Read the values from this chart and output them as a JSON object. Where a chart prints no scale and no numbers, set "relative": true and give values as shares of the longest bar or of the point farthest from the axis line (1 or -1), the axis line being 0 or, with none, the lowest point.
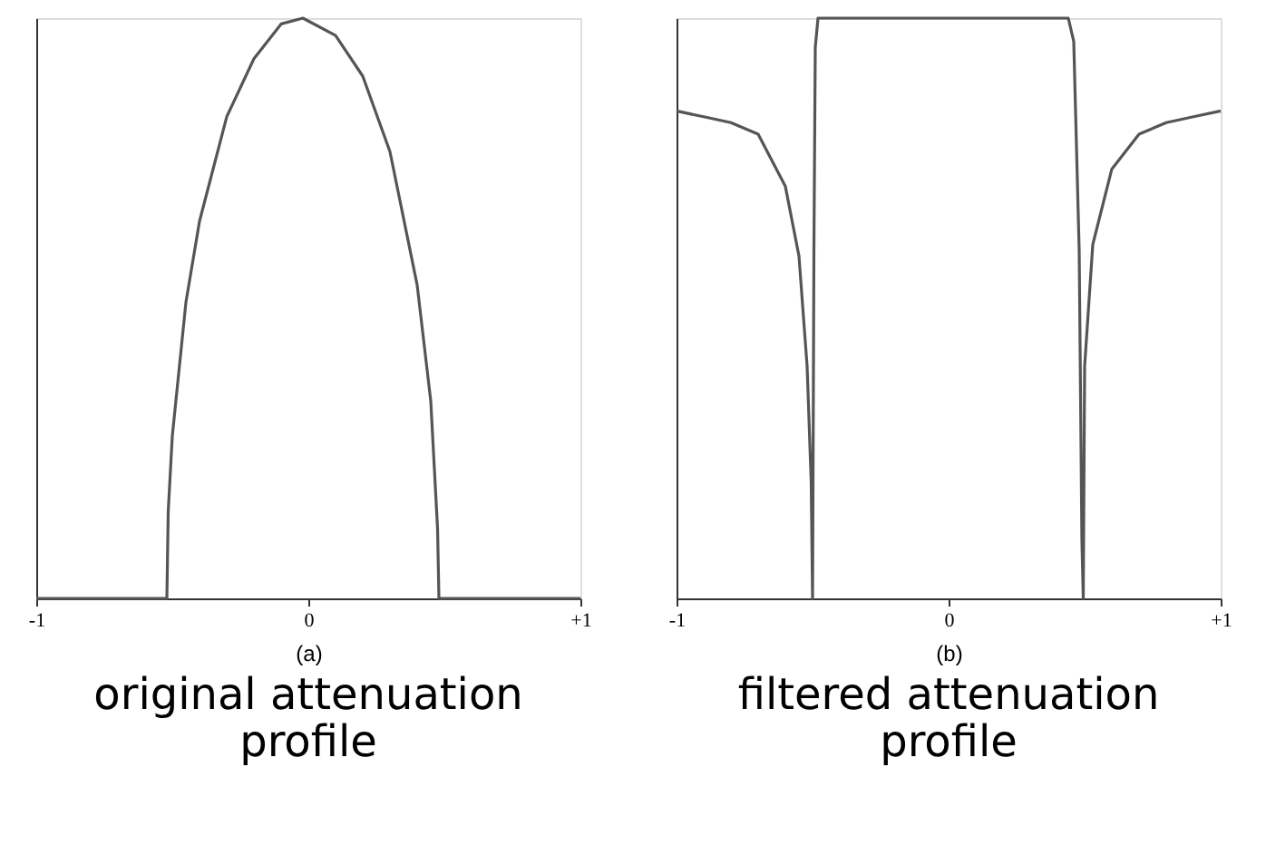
{
  "chart_data": [
    {
      "type": "line",
      "title": "original attenuation profile",
      "xlabel": "(a)",
      "relative": true,
      "xlim": [
        -1,
        1
      ],
      "xticks": [
        -1,
        0,
        {
          "value": 1,
          "label": "+1"
        }
      ],
      "grid": false,
      "series": [
        {
          "color": "#555555",
          "x": [
            -1,
            -0.52,
            -0.515,
            -0.5,
            -0.45,
            -0.4,
            -0.3,
            -0.2,
            -0.1,
            -0.02,
            0.1,
            0.2,
            0.3,
            0.4,
            0.45,
            0.475,
            0.48,
            1
          ],
          "values": [
            0,
            0,
            0.15,
            0.28,
            0.51,
            0.65,
            0.83,
            0.93,
            0.99,
            1,
            0.97,
            0.9,
            0.77,
            0.54,
            0.34,
            0.12,
            0,
            0
          ]
        }
      ]
    },
    {
      "type": "line",
      "title": "filtered attenuation profile",
      "xlabel": "(b)",
      "relative": true,
      "xlim": [
        -1,
        1
      ],
      "xticks": [
        -1,
        0,
        {
          "value": 1,
          "label": "+1"
        }
      ],
      "grid": false,
      "series": [
        {
          "color": "#555555",
          "x": [
            -1,
            -0.9,
            -0.8,
            -0.7,
            -0.6,
            -0.55,
            -0.52,
            -0.505,
            -0.5,
            -0.495,
            -0.49,
            -0.48,
            0.44,
            0.46,
            0.48,
            0.49,
            0.495,
            0.5,
            0.53,
            0.6,
            0.7,
            0.8,
            0.9,
            1
          ],
          "values": [
            0.84,
            0.83,
            0.82,
            0.8,
            0.71,
            0.59,
            0.4,
            0.2,
            0,
            0.6,
            0.95,
            1,
            1,
            0.96,
            0.6,
            0.1,
            0,
            0.4,
            0.61,
            0.74,
            0.8,
            0.82,
            0.83,
            0.84
          ]
        }
      ]
    }
  ]
}
